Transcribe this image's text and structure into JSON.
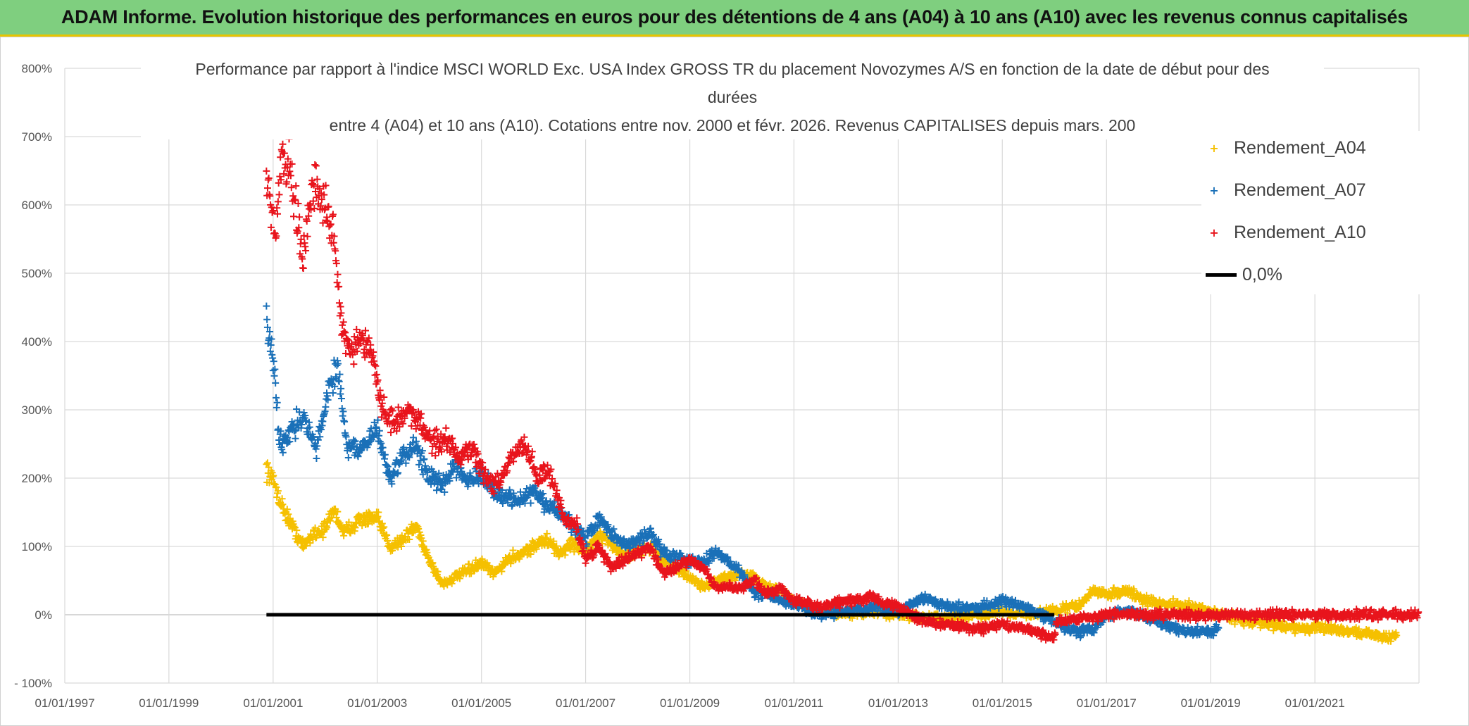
{
  "banner": {
    "title": "ADAM Informe. Evolution historique des performances en euros pour des détentions de 4 ans (A04) à 10 ans (A10) avec les revenus connus capitalisés"
  },
  "chart_data": {
    "type": "scatter",
    "title_lines": [
      "Performance par rapport à l'indice MSCI WORLD Exc. USA Index GROSS TR  du placement Novozymes A/S en fonction de la date de début pour des",
      "durées",
      "entre 4 (A04) et 10 ans (A10). Cotations entre nov. 2000 et févr. 2026. Revenus CAPITALISES depuis mars. 200"
    ],
    "xlabel": "",
    "ylabel": "",
    "x_tick_labels": [
      "01/01/1997",
      "01/01/1999",
      "01/01/2001",
      "01/01/2003",
      "01/01/2005",
      "01/01/2007",
      "01/01/2009",
      "01/01/2011",
      "01/01/2013",
      "01/01/2015",
      "01/01/2017",
      "01/01/2019",
      "01/01/2021"
    ],
    "y_tick_labels": [
      "800%",
      "700%",
      "600%",
      "500%",
      "400%",
      "300%",
      "200%",
      "100%",
      "0%",
      "- 100%"
    ],
    "y_tick_values": [
      800,
      700,
      600,
      500,
      400,
      300,
      200,
      100,
      0,
      -100
    ],
    "xlim": [
      "1997-01-01",
      "2023-01-01"
    ],
    "ylim": [
      -100,
      800
    ],
    "y_unit": "%",
    "grid": true,
    "legend_position": "top-right",
    "series": [
      {
        "name": "Rendement_A04",
        "color": "#f5c000",
        "marker": "plus",
        "anchors": [
          [
            "2000-11-15",
            215
          ],
          [
            "2001-01-15",
            190
          ],
          [
            "2001-03-01",
            160
          ],
          [
            "2001-05-15",
            130
          ],
          [
            "2001-08-01",
            100
          ],
          [
            "2001-10-15",
            120
          ],
          [
            "2002-01-01",
            125
          ],
          [
            "2002-03-01",
            155
          ],
          [
            "2002-05-15",
            120
          ],
          [
            "2002-09-01",
            140
          ],
          [
            "2003-01-01",
            140
          ],
          [
            "2003-04-01",
            100
          ],
          [
            "2003-07-01",
            110
          ],
          [
            "2003-10-01",
            130
          ],
          [
            "2004-01-01",
            80
          ],
          [
            "2004-04-01",
            45
          ],
          [
            "2004-07-01",
            55
          ],
          [
            "2004-10-01",
            65
          ],
          [
            "2005-01-01",
            75
          ],
          [
            "2005-04-01",
            60
          ],
          [
            "2005-07-01",
            80
          ],
          [
            "2005-10-01",
            90
          ],
          [
            "2006-01-01",
            100
          ],
          [
            "2006-04-01",
            110
          ],
          [
            "2006-07-01",
            90
          ],
          [
            "2006-10-01",
            105
          ],
          [
            "2007-01-01",
            90
          ],
          [
            "2007-04-01",
            115
          ],
          [
            "2007-07-01",
            105
          ],
          [
            "2007-10-01",
            85
          ],
          [
            "2008-01-01",
            95
          ],
          [
            "2008-04-01",
            100
          ],
          [
            "2008-07-01",
            80
          ],
          [
            "2009-01-01",
            55
          ],
          [
            "2009-04-01",
            40
          ],
          [
            "2009-07-01",
            50
          ],
          [
            "2010-01-01",
            60
          ],
          [
            "2010-04-01",
            55
          ],
          [
            "2010-07-01",
            40
          ],
          [
            "2010-10-01",
            35
          ],
          [
            "2011-01-01",
            20
          ],
          [
            "2011-04-01",
            10
          ],
          [
            "2011-07-01",
            5
          ],
          [
            "2012-01-01",
            0
          ],
          [
            "2012-07-01",
            5
          ],
          [
            "2013-01-01",
            0
          ],
          [
            "2013-07-01",
            -5
          ],
          [
            "2014-01-01",
            -5
          ],
          [
            "2014-07-01",
            0
          ],
          [
            "2015-01-01",
            5
          ],
          [
            "2015-07-01",
            0
          ],
          [
            "2016-01-01",
            5
          ],
          [
            "2016-07-01",
            15
          ],
          [
            "2016-10-01",
            35
          ],
          [
            "2017-01-01",
            30
          ],
          [
            "2017-06-01",
            35
          ],
          [
            "2017-10-01",
            20
          ],
          [
            "2018-04-01",
            15
          ],
          [
            "2018-10-01",
            10
          ],
          [
            "2019-04-01",
            0
          ],
          [
            "2019-10-01",
            -10
          ],
          [
            "2020-04-01",
            -15
          ],
          [
            "2020-10-01",
            -20
          ],
          [
            "2021-04-01",
            -20
          ],
          [
            "2021-10-01",
            -25
          ],
          [
            "2022-04-01",
            -30
          ],
          [
            "2022-06-01",
            -35
          ],
          [
            "2022-08-01",
            -30
          ]
        ]
      },
      {
        "name": "Rendement_A07",
        "color": "#1a70b8",
        "marker": "plus",
        "anchors": [
          [
            "2000-11-15",
            430
          ],
          [
            "2001-01-01",
            380
          ],
          [
            "2001-02-15",
            250
          ],
          [
            "2001-05-01",
            270
          ],
          [
            "2001-08-01",
            290
          ],
          [
            "2001-11-01",
            240
          ],
          [
            "2002-02-01",
            340
          ],
          [
            "2002-04-01",
            360
          ],
          [
            "2002-06-01",
            250
          ],
          [
            "2002-09-01",
            240
          ],
          [
            "2003-01-01",
            270
          ],
          [
            "2003-04-01",
            200
          ],
          [
            "2003-07-01",
            230
          ],
          [
            "2003-10-01",
            250
          ],
          [
            "2004-01-01",
            200
          ],
          [
            "2004-04-01",
            190
          ],
          [
            "2004-07-01",
            220
          ],
          [
            "2004-10-01",
            200
          ],
          [
            "2005-01-01",
            200
          ],
          [
            "2005-04-01",
            180
          ],
          [
            "2005-07-01",
            170
          ],
          [
            "2005-10-01",
            170
          ],
          [
            "2006-01-01",
            180
          ],
          [
            "2006-04-01",
            160
          ],
          [
            "2006-07-01",
            150
          ],
          [
            "2006-10-01",
            130
          ],
          [
            "2007-01-01",
            110
          ],
          [
            "2007-04-01",
            140
          ],
          [
            "2007-07-01",
            120
          ],
          [
            "2007-10-01",
            100
          ],
          [
            "2008-01-01",
            110
          ],
          [
            "2008-04-01",
            120
          ],
          [
            "2008-07-01",
            90
          ],
          [
            "2009-01-01",
            80
          ],
          [
            "2009-04-01",
            75
          ],
          [
            "2009-07-01",
            95
          ],
          [
            "2010-01-01",
            60
          ],
          [
            "2010-04-01",
            30
          ],
          [
            "2010-07-01",
            30
          ],
          [
            "2010-10-01",
            20
          ],
          [
            "2011-01-01",
            15
          ],
          [
            "2011-07-01",
            0
          ],
          [
            "2012-01-01",
            5
          ],
          [
            "2012-07-01",
            10
          ],
          [
            "2013-01-01",
            5
          ],
          [
            "2013-07-01",
            25
          ],
          [
            "2014-01-01",
            10
          ],
          [
            "2014-07-01",
            10
          ],
          [
            "2015-01-01",
            20
          ],
          [
            "2015-07-01",
            10
          ],
          [
            "2016-01-01",
            -10
          ],
          [
            "2016-04-01",
            -20
          ],
          [
            "2016-07-01",
            -25
          ],
          [
            "2016-10-01",
            -20
          ],
          [
            "2017-01-01",
            0
          ],
          [
            "2017-07-01",
            5
          ],
          [
            "2018-01-01",
            -10
          ],
          [
            "2018-07-01",
            -25
          ],
          [
            "2019-01-01",
            -25
          ],
          [
            "2019-03-01",
            -20
          ]
        ]
      },
      {
        "name": "Rendement_A10",
        "color": "#e8141c",
        "marker": "plus",
        "anchors": [
          [
            "2000-11-15",
            650
          ],
          [
            "2001-01-15",
            550
          ],
          [
            "2001-03-01",
            680
          ],
          [
            "2001-05-01",
            650
          ],
          [
            "2001-08-01",
            520
          ],
          [
            "2001-10-01",
            640
          ],
          [
            "2002-01-01",
            600
          ],
          [
            "2002-03-01",
            550
          ],
          [
            "2002-05-01",
            420
          ],
          [
            "2002-07-01",
            380
          ],
          [
            "2002-09-01",
            400
          ],
          [
            "2002-12-01",
            380
          ],
          [
            "2003-02-01",
            300
          ],
          [
            "2003-05-01",
            280
          ],
          [
            "2003-08-01",
            300
          ],
          [
            "2003-11-01",
            280
          ],
          [
            "2004-02-01",
            250
          ],
          [
            "2004-05-01",
            260
          ],
          [
            "2004-08-01",
            230
          ],
          [
            "2004-11-01",
            240
          ],
          [
            "2005-02-01",
            200
          ],
          [
            "2005-05-01",
            190
          ],
          [
            "2005-08-01",
            230
          ],
          [
            "2005-11-01",
            250
          ],
          [
            "2006-02-01",
            200
          ],
          [
            "2006-04-01",
            210
          ],
          [
            "2006-06-01",
            190
          ],
          [
            "2006-08-01",
            140
          ],
          [
            "2006-11-01",
            130
          ],
          [
            "2007-01-01",
            80
          ],
          [
            "2007-04-01",
            100
          ],
          [
            "2007-07-01",
            70
          ],
          [
            "2007-10-01",
            80
          ],
          [
            "2008-01-01",
            90
          ],
          [
            "2008-04-01",
            100
          ],
          [
            "2008-07-01",
            60
          ],
          [
            "2009-01-01",
            80
          ],
          [
            "2009-04-01",
            70
          ],
          [
            "2009-07-01",
            40
          ],
          [
            "2010-01-01",
            40
          ],
          [
            "2010-04-01",
            50
          ],
          [
            "2010-07-01",
            30
          ],
          [
            "2010-10-01",
            40
          ],
          [
            "2011-01-01",
            20
          ],
          [
            "2011-07-01",
            10
          ],
          [
            "2012-01-01",
            20
          ],
          [
            "2012-07-01",
            25
          ],
          [
            "2013-01-01",
            10
          ],
          [
            "2013-07-01",
            -10
          ],
          [
            "2014-01-01",
            -15
          ],
          [
            "2014-07-01",
            -20
          ],
          [
            "2015-01-01",
            -15
          ],
          [
            "2015-07-01",
            -20
          ],
          [
            "2016-01-01",
            -35
          ],
          [
            "2016-01-15",
            -10
          ],
          [
            "2017-01-01",
            0
          ],
          [
            "2019-01-01",
            0
          ],
          [
            "2021-01-01",
            0
          ],
          [
            "2023-01-01",
            0
          ]
        ]
      },
      {
        "name": "0,0%",
        "color": "#000000",
        "marker": "line",
        "x": [
          "2000-11-15",
          "2016-01-01"
        ],
        "y": [
          0,
          0
        ]
      }
    ]
  }
}
